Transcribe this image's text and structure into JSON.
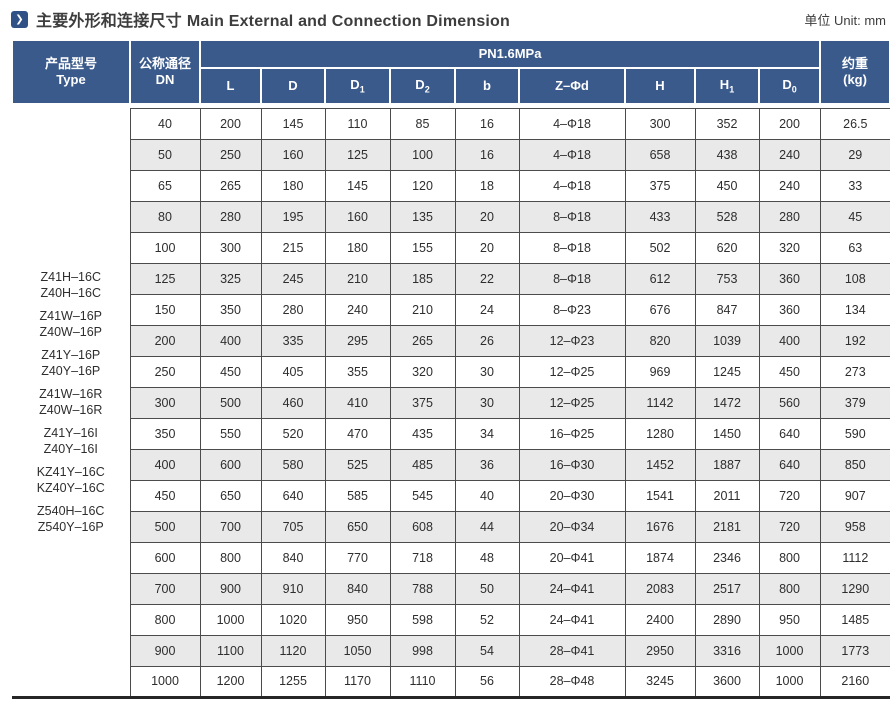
{
  "page": {
    "title_zh": "主要外形和连接尺寸",
    "title_en": "Main External and Connection Dimension",
    "unit_label": "单位 Unit: mm",
    "marker_glyph": "❯"
  },
  "colors": {
    "header_blue": "#3a5a8c",
    "icon_blue": "#2f5186",
    "stripe_gray": "#e9e9e9",
    "border_dark": "#4b4b4b"
  },
  "table": {
    "headers": {
      "type_zh": "产品型号",
      "type_en": "Type",
      "dn_zh": "公称通径",
      "dn_en": "DN",
      "pressure": "PN1.6MPa",
      "weight_zh": "约重",
      "weight_en": "(kg)"
    },
    "dim_columns": [
      {
        "name": "l",
        "label": "L",
        "sub": ""
      },
      {
        "name": "d",
        "label": "D",
        "sub": ""
      },
      {
        "name": "d1",
        "label": "D",
        "sub": "1"
      },
      {
        "name": "d2",
        "label": "D",
        "sub": "2"
      },
      {
        "name": "b",
        "label": "b",
        "sub": ""
      },
      {
        "name": "z-phi-d",
        "label": "Z–Φd",
        "sub": ""
      },
      {
        "name": "h",
        "label": "H",
        "sub": ""
      },
      {
        "name": "h1",
        "label": "H",
        "sub": "1"
      },
      {
        "name": "d0",
        "label": "D",
        "sub": "0"
      }
    ],
    "type_model_groups": [
      [
        "Z41H–16C",
        "Z40H–16C"
      ],
      [
        "Z41W–16P",
        "Z40W–16P"
      ],
      [
        "Z41Y–16P",
        "Z40Y–16P"
      ],
      [
        "Z41W–16R",
        "Z40W–16R"
      ],
      [
        "Z41Y–16I",
        "Z40Y–16I"
      ],
      [
        "KZ41Y–16C",
        "KZ40Y–16C"
      ],
      [
        "Z540H–16C",
        "Z540Y–16P"
      ]
    ],
    "rows": [
      {
        "dn": "40",
        "values": [
          "200",
          "145",
          "110",
          "85",
          "16",
          "4–Φ18",
          "300",
          "352",
          "200",
          "26.5"
        ]
      },
      {
        "dn": "50",
        "values": [
          "250",
          "160",
          "125",
          "100",
          "16",
          "4–Φ18",
          "658",
          "438",
          "240",
          "29"
        ]
      },
      {
        "dn": "65",
        "values": [
          "265",
          "180",
          "145",
          "120",
          "18",
          "4–Φ18",
          "375",
          "450",
          "240",
          "33"
        ]
      },
      {
        "dn": "80",
        "values": [
          "280",
          "195",
          "160",
          "135",
          "20",
          "8–Φ18",
          "433",
          "528",
          "280",
          "45"
        ]
      },
      {
        "dn": "100",
        "values": [
          "300",
          "215",
          "180",
          "155",
          "20",
          "8–Φ18",
          "502",
          "620",
          "320",
          "63"
        ]
      },
      {
        "dn": "125",
        "values": [
          "325",
          "245",
          "210",
          "185",
          "22",
          "8–Φ18",
          "612",
          "753",
          "360",
          "108"
        ]
      },
      {
        "dn": "150",
        "values": [
          "350",
          "280",
          "240",
          "210",
          "24",
          "8–Φ23",
          "676",
          "847",
          "360",
          "134"
        ]
      },
      {
        "dn": "200",
        "values": [
          "400",
          "335",
          "295",
          "265",
          "26",
          "12–Φ23",
          "820",
          "1039",
          "400",
          "192"
        ]
      },
      {
        "dn": "250",
        "values": [
          "450",
          "405",
          "355",
          "320",
          "30",
          "12–Φ25",
          "969",
          "1245",
          "450",
          "273"
        ]
      },
      {
        "dn": "300",
        "values": [
          "500",
          "460",
          "410",
          "375",
          "30",
          "12–Φ25",
          "1142",
          "1472",
          "560",
          "379"
        ]
      },
      {
        "dn": "350",
        "values": [
          "550",
          "520",
          "470",
          "435",
          "34",
          "16–Φ25",
          "1280",
          "1450",
          "640",
          "590"
        ]
      },
      {
        "dn": "400",
        "values": [
          "600",
          "580",
          "525",
          "485",
          "36",
          "16–Φ30",
          "1452",
          "1887",
          "640",
          "850"
        ]
      },
      {
        "dn": "450",
        "values": [
          "650",
          "640",
          "585",
          "545",
          "40",
          "20–Φ30",
          "1541",
          "2011",
          "720",
          "907"
        ]
      },
      {
        "dn": "500",
        "values": [
          "700",
          "705",
          "650",
          "608",
          "44",
          "20–Φ34",
          "1676",
          "2181",
          "720",
          "958"
        ]
      },
      {
        "dn": "600",
        "values": [
          "800",
          "840",
          "770",
          "718",
          "48",
          "20–Φ41",
          "1874",
          "2346",
          "800",
          "1112"
        ]
      },
      {
        "dn": "700",
        "values": [
          "900",
          "910",
          "840",
          "788",
          "50",
          "24–Φ41",
          "2083",
          "2517",
          "800",
          "1290"
        ]
      },
      {
        "dn": "800",
        "values": [
          "1000",
          "1020",
          "950",
          "598",
          "52",
          "24–Φ41",
          "2400",
          "2890",
          "950",
          "1485"
        ]
      },
      {
        "dn": "900",
        "values": [
          "1100",
          "1120",
          "1050",
          "998",
          "54",
          "28–Φ41",
          "2950",
          "3316",
          "1000",
          "1773"
        ]
      },
      {
        "dn": "1000",
        "values": [
          "1200",
          "1255",
          "1170",
          "1110",
          "56",
          "28–Φ48",
          "3245",
          "3600",
          "1000",
          "2160"
        ]
      }
    ]
  }
}
